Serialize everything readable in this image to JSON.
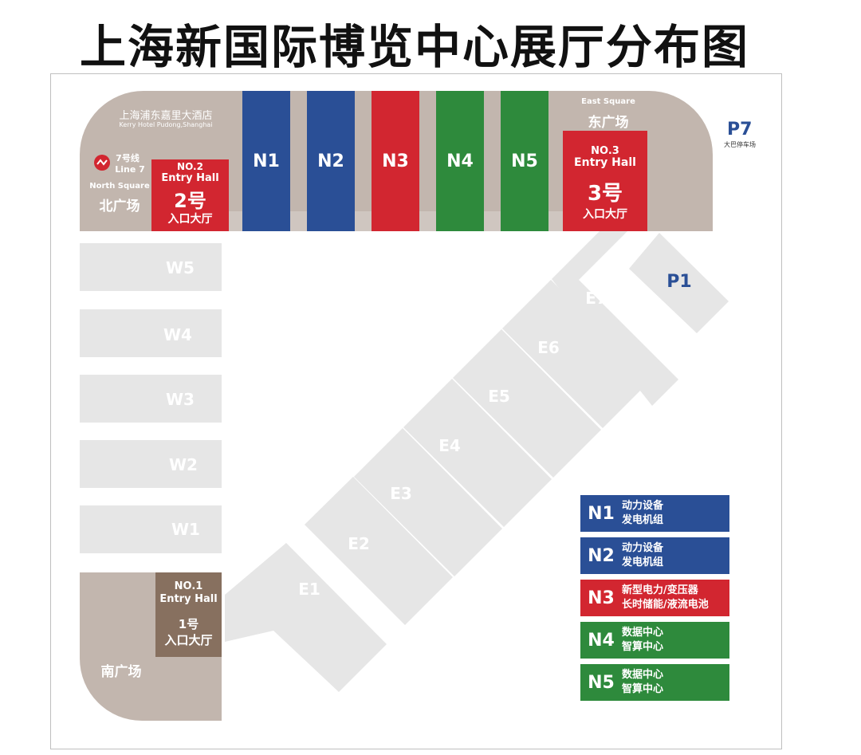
{
  "title": "上海新国际博览中心展厅分布图",
  "hotel": {
    "cn": "上海浦东嘉里大酒店",
    "en": "Kerry Hotel Pudong,Shanghai"
  },
  "metro": {
    "cn": "7号线",
    "en": "Line 7"
  },
  "north_square": {
    "en": "North Square",
    "cn": "北广场"
  },
  "east_square": {
    "en": "East Square",
    "cn": "东广场"
  },
  "south_square": {
    "cn": "南广场"
  },
  "p7": {
    "code": "P7",
    "cn": "大巴停车场"
  },
  "p1": {
    "code": "P1"
  },
  "entry2": {
    "no": "NO.2",
    "en": "Entry Hall",
    "num": "2号",
    "cn": "入口大厅"
  },
  "entry3": {
    "no": "NO.3",
    "en": "Entry Hall",
    "num": "3号",
    "cn": "入口大厅"
  },
  "entry1": {
    "no": "NO.1",
    "en": "Entry Hall",
    "num": "1号",
    "cn": "入口大厅"
  },
  "north_halls": [
    "N1",
    "N2",
    "N3",
    "N4",
    "N5"
  ],
  "west_halls": [
    "W5",
    "W4",
    "W3",
    "W2",
    "W1"
  ],
  "east_halls": [
    "E1",
    "E2",
    "E3",
    "E4",
    "E5",
    "E6",
    "E7"
  ],
  "legend": [
    {
      "code": "N1",
      "line1": "动力设备",
      "line2": "发电机组",
      "color": "#2a4f96"
    },
    {
      "code": "N2",
      "line1": "动力设备",
      "line2": "发电机组",
      "color": "#2a4f96"
    },
    {
      "code": "N3",
      "line1": "新型电力/变压器",
      "line2": "长时储能/液流电池",
      "color": "#d22630"
    },
    {
      "code": "N4",
      "line1": "数据中心",
      "line2": "智算中心",
      "color": "#2e8a3c"
    },
    {
      "code": "N5",
      "line1": "数据中心",
      "line2": "智算中心",
      "color": "#2e8a3c"
    }
  ]
}
